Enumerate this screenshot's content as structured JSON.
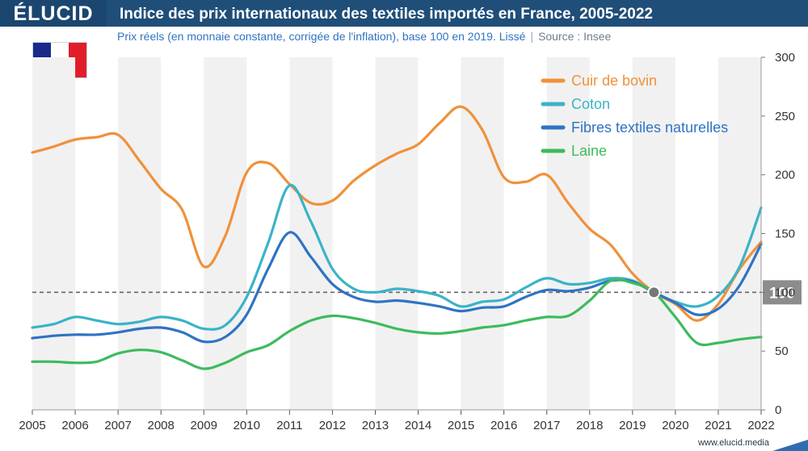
{
  "brand": "ÉLUCID",
  "title": "Indice des prix internationaux des textiles importés en France, 2005-2022",
  "subtitle": "Prix réels (en monnaie constante, corrigée de l'inflation), base 100 en 2019. Lissé",
  "source": "Source : Insee",
  "site": "www.elucid.media",
  "flag_colors": [
    "#1a2a8c",
    "#ffffff",
    "#e01e2a"
  ],
  "colors": {
    "header": "#1f4e79",
    "band": "#f1f1f1",
    "baseline": "#666666",
    "baseline_label_bg": "#8c8c8c"
  },
  "chart_data": {
    "type": "line",
    "title": "Indice des prix internationaux des textiles importés en France, 2005-2022",
    "x_ticks": [
      "2005",
      "2006",
      "2007",
      "2008",
      "2009",
      "2010",
      "2011",
      "2012",
      "2013",
      "2014",
      "2015",
      "2016",
      "2017",
      "2018",
      "2019",
      "2020",
      "2021",
      "2022"
    ],
    "y_ticks": [
      "0",
      "50",
      "100",
      "150",
      "200",
      "250",
      "300"
    ],
    "xlim": [
      2005,
      2022
    ],
    "ylim": [
      0,
      300
    ],
    "grid": "alternating vertical bands",
    "legend_position": "top-right",
    "reference_line": {
      "value": 100,
      "label": "100",
      "marker_x": 2019.5
    },
    "series": [
      {
        "name": "Cuir de bovin",
        "color": "#f0913a",
        "x": [
          2005.0,
          2005.5,
          2006.0,
          2006.5,
          2007.0,
          2007.5,
          2008.0,
          2008.5,
          2009.0,
          2009.5,
          2010.0,
          2010.5,
          2011.0,
          2011.5,
          2012.0,
          2012.5,
          2013.0,
          2013.5,
          2014.0,
          2014.5,
          2015.0,
          2015.5,
          2016.0,
          2016.5,
          2017.0,
          2017.5,
          2018.0,
          2018.5,
          2019.0,
          2019.5,
          2020.0,
          2020.5,
          2021.0,
          2021.5,
          2022.0
        ],
        "y": [
          219,
          224,
          230,
          232,
          234,
          212,
          188,
          170,
          122,
          148,
          202,
          210,
          192,
          176,
          178,
          195,
          208,
          218,
          226,
          244,
          258,
          238,
          198,
          194,
          200,
          176,
          154,
          140,
          116,
          100,
          90,
          76,
          90,
          120,
          143
        ]
      },
      {
        "name": "Coton",
        "color": "#3ab3c8",
        "x": [
          2005.0,
          2005.5,
          2006.0,
          2006.5,
          2007.0,
          2007.5,
          2008.0,
          2008.5,
          2009.0,
          2009.5,
          2010.0,
          2010.5,
          2011.0,
          2011.5,
          2012.0,
          2012.5,
          2013.0,
          2013.5,
          2014.0,
          2014.5,
          2015.0,
          2015.5,
          2016.0,
          2016.5,
          2017.0,
          2017.5,
          2018.0,
          2018.5,
          2019.0,
          2019.5,
          2020.0,
          2020.5,
          2021.0,
          2021.5,
          2022.0
        ],
        "y": [
          70,
          73,
          79,
          76,
          73,
          75,
          79,
          76,
          69,
          72,
          96,
          142,
          191,
          160,
          120,
          103,
          100,
          103,
          101,
          97,
          88,
          92,
          94,
          104,
          112,
          107,
          108,
          112,
          110,
          100,
          92,
          88,
          97,
          122,
          172
        ]
      },
      {
        "name": "Fibres textiles naturelles",
        "color": "#2f73c4",
        "x": [
          2005.0,
          2005.5,
          2006.0,
          2006.5,
          2007.0,
          2007.5,
          2008.0,
          2008.5,
          2009.0,
          2009.5,
          2010.0,
          2010.5,
          2011.0,
          2011.5,
          2012.0,
          2012.5,
          2013.0,
          2013.5,
          2014.0,
          2014.5,
          2015.0,
          2015.5,
          2016.0,
          2016.5,
          2017.0,
          2017.5,
          2018.0,
          2018.5,
          2019.0,
          2019.5,
          2020.0,
          2020.5,
          2021.0,
          2021.5,
          2022.0
        ],
        "y": [
          61,
          63,
          64,
          64,
          66,
          69,
          70,
          66,
          58,
          62,
          81,
          120,
          151,
          130,
          107,
          96,
          92,
          93,
          91,
          88,
          84,
          87,
          88,
          96,
          102,
          101,
          104,
          110,
          109,
          100,
          91,
          81,
          86,
          106,
          141
        ]
      },
      {
        "name": "Laine",
        "color": "#3dbb5c",
        "x": [
          2005.0,
          2005.5,
          2006.0,
          2006.5,
          2007.0,
          2007.5,
          2008.0,
          2008.5,
          2009.0,
          2009.5,
          2010.0,
          2010.5,
          2011.0,
          2011.5,
          2012.0,
          2012.5,
          2013.0,
          2013.5,
          2014.0,
          2014.5,
          2015.0,
          2015.5,
          2016.0,
          2016.5,
          2017.0,
          2017.5,
          2018.0,
          2018.5,
          2019.0,
          2019.5,
          2020.0,
          2020.5,
          2021.0,
          2021.5,
          2022.0
        ],
        "y": [
          41,
          41,
          40,
          41,
          48,
          51,
          49,
          42,
          35,
          40,
          49,
          55,
          67,
          76,
          80,
          78,
          74,
          69,
          66,
          65,
          67,
          70,
          72,
          76,
          79,
          80,
          93,
          110,
          108,
          100,
          79,
          57,
          57,
          60,
          62
        ]
      }
    ]
  }
}
